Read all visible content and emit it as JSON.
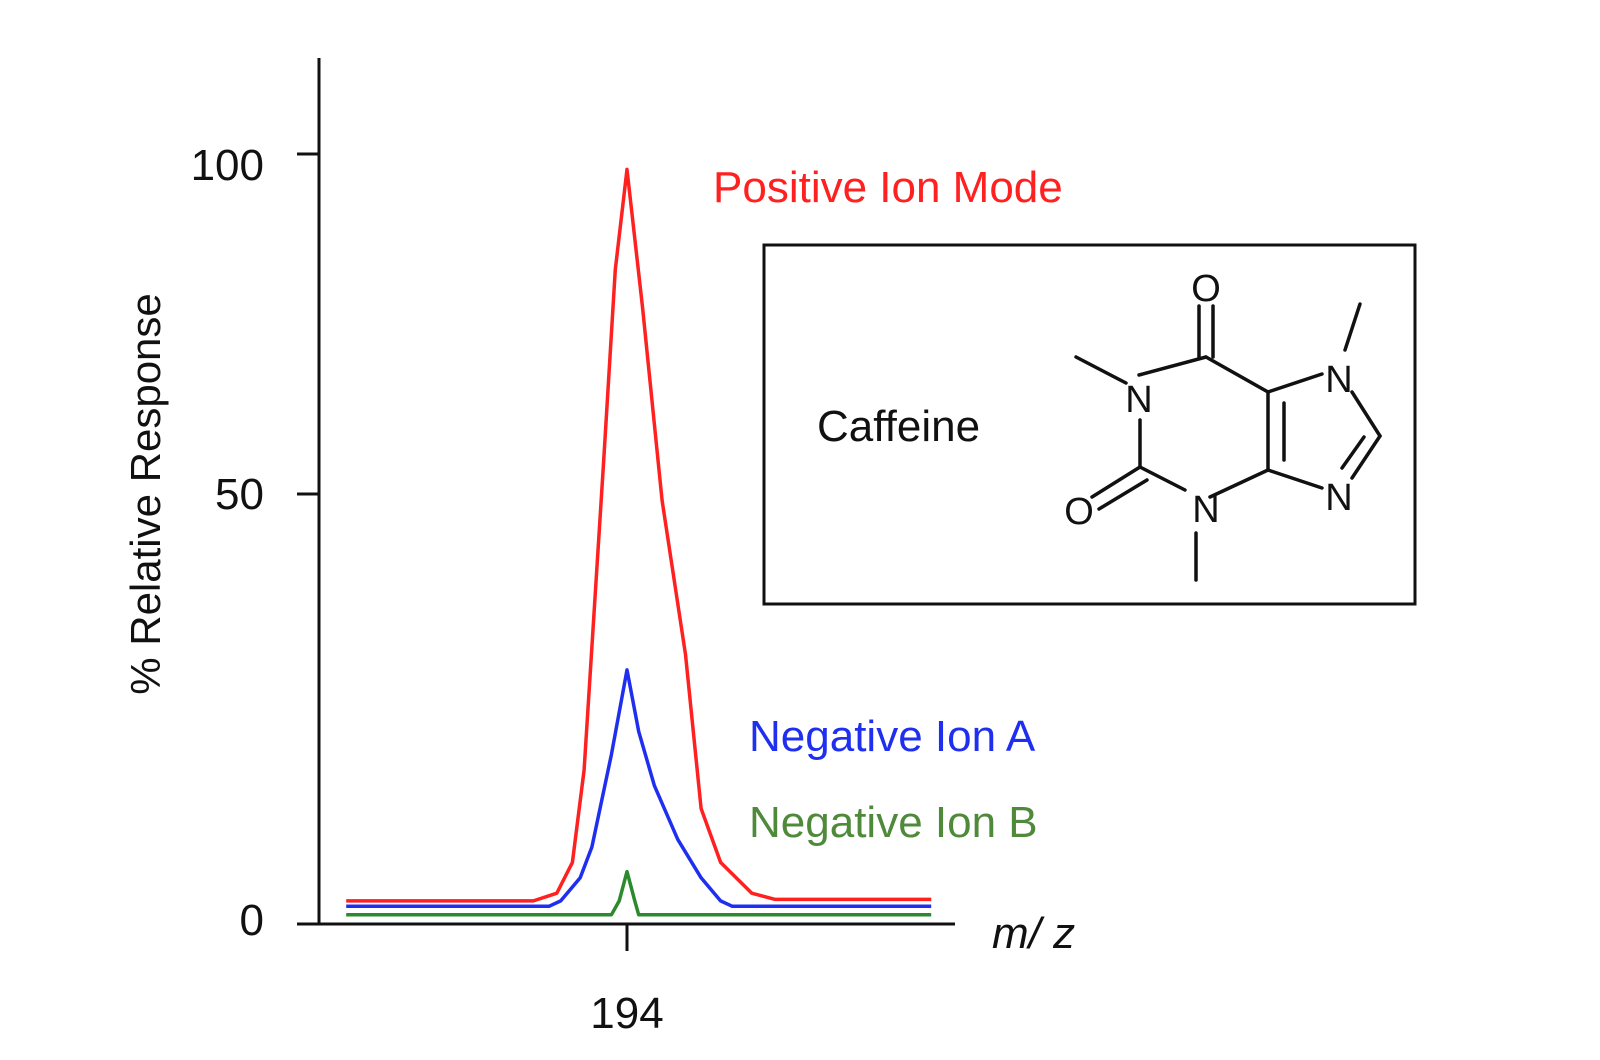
{
  "chart_data": {
    "type": "line",
    "xlabel": "m/ z",
    "ylabel": "% Relative Response",
    "x_tick_labels": [
      "194"
    ],
    "y_tick_labels": [
      "0",
      "50",
      "100"
    ],
    "ylim": [
      0,
      100
    ],
    "grid": false,
    "series": [
      {
        "name": "Positive Ion Mode",
        "color": "#ff2020",
        "peak_x": 194,
        "peak_value": 98,
        "baseline": 3,
        "points": [
          [
            -3.6,
            3
          ],
          [
            -1.2,
            3
          ],
          [
            -0.9,
            4
          ],
          [
            -0.7,
            8
          ],
          [
            -0.55,
            20
          ],
          [
            -0.3,
            60
          ],
          [
            -0.15,
            85
          ],
          [
            0,
            98
          ],
          [
            0.2,
            80
          ],
          [
            0.45,
            55
          ],
          [
            0.75,
            35
          ],
          [
            0.95,
            15
          ],
          [
            1.2,
            8
          ],
          [
            1.6,
            4
          ],
          [
            1.9,
            3.2
          ],
          [
            3.9,
            3.2
          ]
        ]
      },
      {
        "name": "Negative Ion A",
        "color": "#1f2ff0",
        "peak_x": 194,
        "peak_value": 33,
        "baseline": 2,
        "points": [
          [
            -3.6,
            2.3
          ],
          [
            -1.0,
            2.3
          ],
          [
            -0.85,
            3
          ],
          [
            -0.6,
            6
          ],
          [
            -0.45,
            10
          ],
          [
            -0.2,
            22
          ],
          [
            0,
            33
          ],
          [
            0.15,
            25
          ],
          [
            0.35,
            18
          ],
          [
            0.65,
            11
          ],
          [
            0.95,
            6
          ],
          [
            1.2,
            3
          ],
          [
            1.35,
            2.3
          ],
          [
            3.9,
            2.3
          ]
        ]
      },
      {
        "name": "Negative Ion B",
        "color": "#2c8a2c",
        "peak_x": 194,
        "peak_value": 7,
        "baseline": 1,
        "points": [
          [
            -3.6,
            1.2
          ],
          [
            -0.2,
            1.2
          ],
          [
            -0.1,
            3
          ],
          [
            0,
            6.8
          ],
          [
            0.1,
            3
          ],
          [
            0.15,
            1.2
          ],
          [
            3.9,
            1.2
          ]
        ]
      }
    ],
    "inset": {
      "label": "Caffeine",
      "atoms": [
        "O",
        "O",
        "N",
        "N",
        "N",
        "N"
      ]
    }
  }
}
